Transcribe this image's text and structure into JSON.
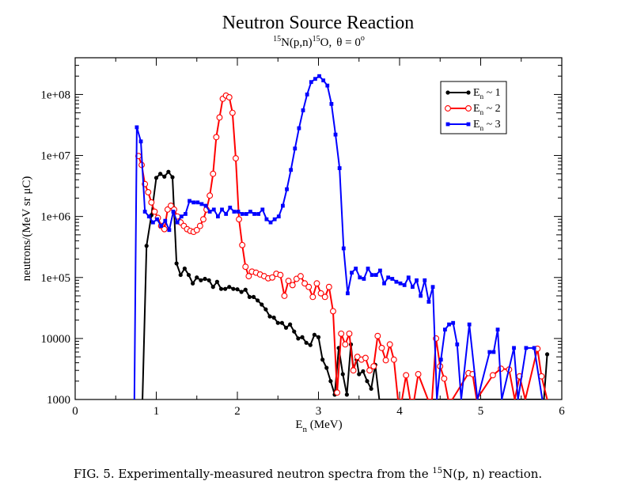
{
  "chart_data": {
    "type": "line",
    "title": "Neutron Source Reaction",
    "subtitle": {
      "pre_sup": "15",
      "target": "N(p,n)",
      "product_sup": "15",
      "product": "O,",
      "angle": "θ =  0",
      "angle_sup": "o"
    },
    "xlabel": "E",
    "xlabel_sub": "n",
    "xlabel_unit": " (MeV)",
    "ylabel": "neutrons/(MeV sr μC)",
    "xlim": [
      0,
      6
    ],
    "ylim": [
      1000,
      400000000
    ],
    "yscale": "log",
    "x_ticks": [
      0,
      1,
      2,
      3,
      4,
      5,
      6
    ],
    "x_tick_labels": [
      "0",
      "1",
      "2",
      "3",
      "4",
      "5",
      "6"
    ],
    "y_ticks": [
      1000,
      10000,
      100000,
      1000000,
      10000000,
      100000000
    ],
    "y_tick_labels": [
      "1000",
      "10000",
      "1e+05",
      "1e+06",
      "1e+07",
      "1e+08"
    ],
    "legend": {
      "position": "top-right",
      "entries": [
        {
          "label": "E",
          "sub": "n",
          "suffix": " ~ 1"
        },
        {
          "label": "E",
          "sub": "n",
          "suffix": " ~ 2"
        },
        {
          "label": "E",
          "sub": "n",
          "suffix": " ~ 3"
        }
      ]
    },
    "series": [
      {
        "name": "En ~ 1",
        "color": "#000000",
        "marker": "filled-circle",
        "x": [
          0.83,
          0.88,
          0.94,
          1.0,
          1.05,
          1.1,
          1.15,
          1.2,
          1.25,
          1.3,
          1.35,
          1.4,
          1.45,
          1.5,
          1.55,
          1.6,
          1.65,
          1.7,
          1.75,
          1.8,
          1.85,
          1.9,
          1.95,
          2.0,
          2.05,
          2.1,
          2.15,
          2.2,
          2.25,
          2.3,
          2.35,
          2.4,
          2.45,
          2.5,
          2.55,
          2.6,
          2.65,
          2.7,
          2.75,
          2.8,
          2.85,
          2.9,
          2.95,
          3.0,
          3.05,
          3.1,
          3.15,
          3.2,
          3.25,
          3.3,
          3.35,
          3.4,
          3.43,
          3.47,
          3.5,
          3.55,
          3.6,
          3.65,
          3.7,
          3.75,
          3.8,
          3.85,
          3.88,
          5.78,
          5.82
        ],
        "y": [
          1000,
          330000,
          1050000,
          4300000,
          5000000,
          4500000,
          5400000,
          4400000,
          170000,
          110000,
          140000,
          110000,
          80000,
          100000,
          90000,
          95000,
          90000,
          70000,
          85000,
          65000,
          65000,
          70000,
          65000,
          64000,
          58000,
          63000,
          48000,
          48000,
          42000,
          36000,
          30000,
          23000,
          22000,
          18000,
          18000,
          15000,
          17000,
          13000,
          10000,
          10500,
          8500,
          7800,
          11500,
          10500,
          4500,
          3300,
          2000,
          1200,
          7000,
          2600,
          1200,
          8000,
          3200,
          4500,
          2600,
          2900,
          2000,
          1500,
          3700,
          1000,
          1000,
          1000,
          1000,
          1000,
          5500
        ]
      },
      {
        "name": "En ~ 2",
        "color": "#ff0000",
        "marker": "open-circle",
        "x": [
          0.78,
          0.82,
          0.86,
          0.9,
          0.94,
          0.98,
          1.02,
          1.06,
          1.1,
          1.14,
          1.18,
          1.22,
          1.26,
          1.3,
          1.34,
          1.38,
          1.42,
          1.46,
          1.5,
          1.54,
          1.58,
          1.62,
          1.66,
          1.7,
          1.74,
          1.78,
          1.82,
          1.86,
          1.9,
          1.94,
          1.98,
          2.02,
          2.06,
          2.1,
          2.14,
          2.18,
          2.23,
          2.28,
          2.33,
          2.38,
          2.43,
          2.48,
          2.53,
          2.58,
          2.63,
          2.68,
          2.73,
          2.78,
          2.83,
          2.88,
          2.93,
          2.98,
          3.03,
          3.08,
          3.13,
          3.18,
          3.23,
          3.28,
          3.33,
          3.38,
          3.43,
          3.48,
          3.53,
          3.58,
          3.63,
          3.68,
          3.73,
          3.78,
          3.83,
          3.88,
          3.93,
          3.98,
          4.03,
          4.08,
          4.13,
          4.18,
          4.23,
          4.35,
          4.4,
          4.45,
          4.5,
          4.55,
          4.6,
          4.65,
          4.85,
          4.9,
          4.95,
          5.15,
          5.25,
          5.35,
          5.42,
          5.48,
          5.55,
          5.7,
          5.75,
          5.82
        ],
        "y": [
          9800000,
          7000000,
          3400000,
          2500000,
          1700000,
          1200000,
          950000,
          700000,
          620000,
          1300000,
          1500000,
          1300000,
          1000000,
          800000,
          700000,
          620000,
          580000,
          560000,
          600000,
          700000,
          900000,
          1300000,
          2200000,
          5000000,
          20000000,
          42000000,
          85000000,
          96000000,
          90000000,
          50000000,
          9000000,
          900000,
          340000,
          150000,
          105000,
          125000,
          120000,
          112000,
          105000,
          97000,
          100000,
          115000,
          110000,
          50000,
          88000,
          75000,
          95000,
          105000,
          80000,
          70000,
          48000,
          80000,
          55000,
          48000,
          70000,
          28000,
          1300,
          12000,
          8000,
          12000,
          3000,
          5000,
          4500,
          4800,
          3000,
          3500,
          11000,
          7000,
          4400,
          8000,
          4500,
          1000,
          1000,
          2500,
          1000,
          1000,
          2600,
          1000,
          1000,
          10000,
          3500,
          2200,
          1000,
          1000,
          2700,
          2600,
          1000,
          2500,
          3200,
          3100,
          1000,
          2400,
          1000,
          6800,
          2400,
          1000
        ]
      },
      {
        "name": "En ~ 3",
        "color": "#0000ff",
        "marker": "filled-square",
        "x": [
          0.73,
          0.76,
          0.81,
          0.86,
          0.91,
          0.96,
          1.01,
          1.06,
          1.11,
          1.16,
          1.21,
          1.26,
          1.31,
          1.36,
          1.41,
          1.46,
          1.51,
          1.56,
          1.61,
          1.66,
          1.71,
          1.76,
          1.81,
          1.86,
          1.91,
          1.96,
          2.01,
          2.06,
          2.11,
          2.16,
          2.21,
          2.26,
          2.31,
          2.36,
          2.41,
          2.46,
          2.51,
          2.56,
          2.61,
          2.66,
          2.71,
          2.76,
          2.81,
          2.86,
          2.91,
          2.96,
          3.01,
          3.06,
          3.11,
          3.16,
          3.21,
          3.26,
          3.31,
          3.36,
          3.41,
          3.46,
          3.51,
          3.56,
          3.61,
          3.66,
          3.71,
          3.76,
          3.81,
          3.86,
          3.91,
          3.96,
          4.01,
          4.06,
          4.11,
          4.16,
          4.21,
          4.26,
          4.31,
          4.36,
          4.41,
          4.46,
          4.51,
          4.56,
          4.61,
          4.66,
          4.71,
          4.76,
          4.86,
          4.96,
          5.11,
          5.16,
          5.21,
          5.26,
          5.41,
          5.46,
          5.56,
          5.66,
          5.76
        ],
        "y": [
          1000,
          29000000,
          17000000,
          1200000,
          1000000,
          800000,
          900000,
          700000,
          850000,
          600000,
          1200000,
          800000,
          1000000,
          1100000,
          1800000,
          1700000,
          1700000,
          1600000,
          1500000,
          1200000,
          1300000,
          1000000,
          1300000,
          1100000,
          1400000,
          1200000,
          1200000,
          1100000,
          1100000,
          1200000,
          1100000,
          1100000,
          1300000,
          900000,
          800000,
          900000,
          1000000,
          1500000,
          2800000,
          5800000,
          13000000,
          28000000,
          55000000,
          100000000,
          160000000,
          180000000,
          200000000,
          170000000,
          140000000,
          70000000,
          22000000,
          6200000,
          300000,
          55000,
          120000,
          140000,
          100000,
          95000,
          140000,
          110000,
          110000,
          130000,
          80000,
          100000,
          95000,
          85000,
          80000,
          75000,
          100000,
          70000,
          90000,
          50000,
          90000,
          40000,
          70000,
          1000,
          4500,
          14000,
          17000,
          18000,
          8000,
          1000,
          17000,
          1000,
          6000,
          6000,
          14000,
          1000,
          7000,
          1000,
          7000,
          7000,
          1000
        ]
      }
    ]
  },
  "caption": {
    "prefix": "FIG. 5. Experimentally-measured neutron spectra from the ",
    "sup": "15",
    "reaction": "N(p, n)",
    "suffix": " reaction."
  }
}
